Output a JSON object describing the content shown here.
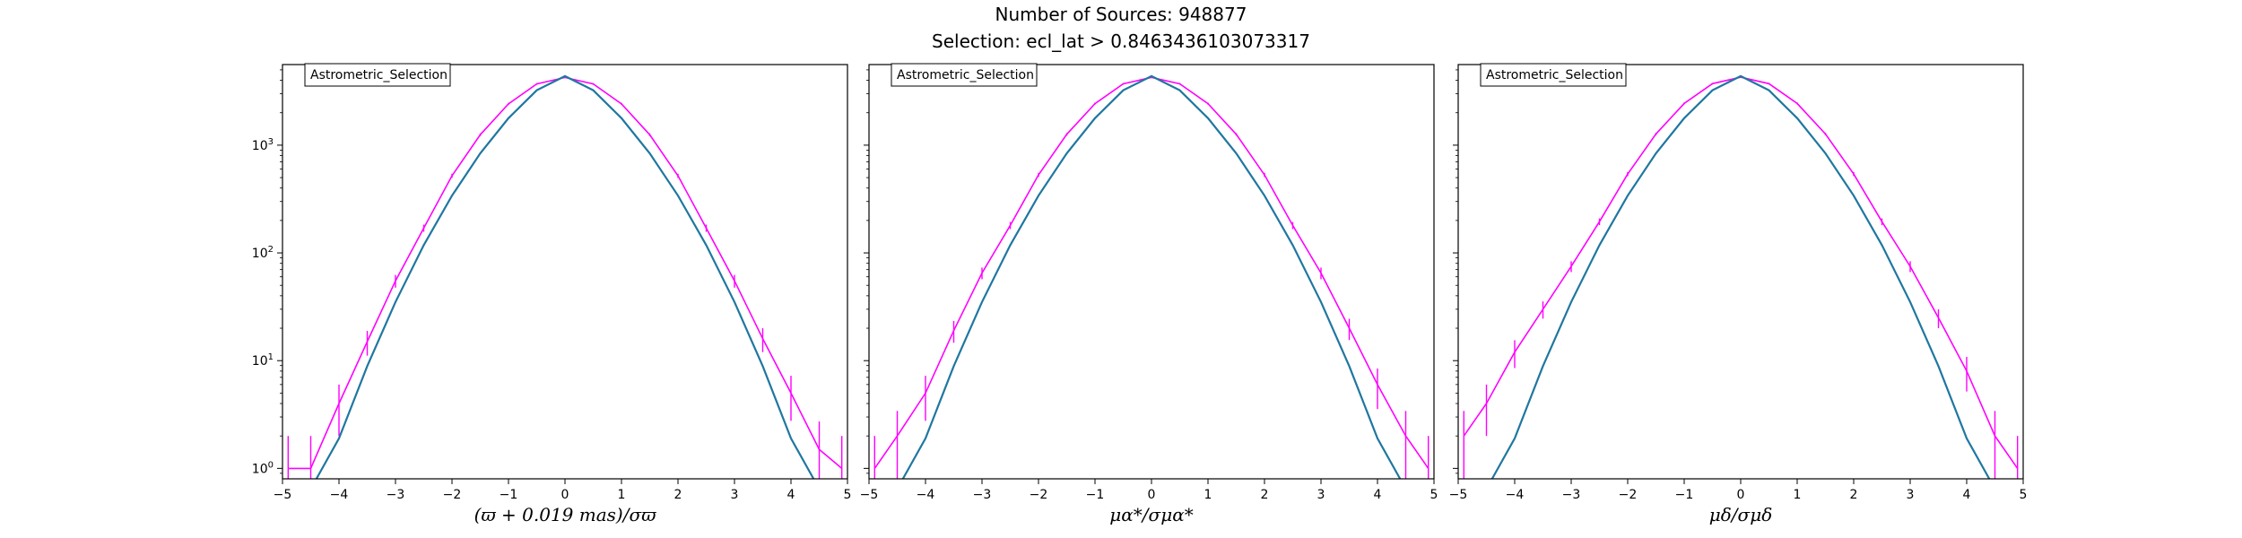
{
  "figure": {
    "suptitle_line1": "Number of Sources: 948877",
    "suptitle_line2": "Selection: ecl_lat > 0.8463436103073317",
    "colors": {
      "data": "#ff00ff",
      "model": "#1f77a0",
      "axes": "#000000"
    }
  },
  "chart_data": [
    {
      "type": "line",
      "legend": "Astrometric_Selection",
      "legend_location": "upper left",
      "xlabel": "(ϖ + 0.019 mas)/σϖ",
      "ylabel": "",
      "xlim": [
        -5,
        5
      ],
      "ylim": [
        0.8,
        5600
      ],
      "yscale": "log",
      "xticks": [
        "−5",
        "−4",
        "−3",
        "−2",
        "−1",
        "0",
        "1",
        "2",
        "3",
        "4",
        "5"
      ],
      "yticks": [
        "10^0",
        "10^1",
        "10^2",
        "10^3"
      ],
      "grid": false,
      "series": [
        {
          "style": "histogram",
          "color": "#ff00ff",
          "x": [
            -4.9,
            -4.5,
            -4.0,
            -3.5,
            -3.0,
            -2.5,
            -2.0,
            -1.5,
            -1.0,
            -0.5,
            0.0,
            0.5,
            1.0,
            1.5,
            2.0,
            2.5,
            3.0,
            3.5,
            4.0,
            4.5,
            4.9
          ],
          "y": [
            1,
            1,
            4,
            15,
            55,
            170,
            520,
            1250,
            2420,
            3700,
            4250,
            3700,
            2420,
            1250,
            520,
            170,
            55,
            16,
            5,
            1.5,
            1
          ]
        },
        {
          "style": "curve",
          "color": "#1f77a0",
          "form": "gaussian",
          "x": [
            -4.4,
            -4.0,
            -3.5,
            -3.0,
            -2.5,
            -2.0,
            -1.5,
            -1.0,
            -0.5,
            0.0,
            0.5,
            1.0,
            1.5,
            2.0,
            2.5,
            3.0,
            3.5,
            4.0,
            4.4
          ],
          "y": [
            0.8,
            1.9,
            8.9,
            35,
            118,
            340,
            840,
            1780,
            3230,
            4370,
            3230,
            1780,
            840,
            340,
            118,
            35,
            8.9,
            1.9,
            0.8
          ]
        }
      ]
    },
    {
      "type": "line",
      "legend": "Astrometric_Selection",
      "legend_location": "upper left",
      "xlabel": "μα*/σμα*",
      "ylabel": "",
      "xlim": [
        -5,
        5
      ],
      "ylim": [
        0.8,
        5600
      ],
      "yscale": "log",
      "xticks": [
        "−5",
        "−4",
        "−3",
        "−2",
        "−1",
        "0",
        "1",
        "2",
        "3",
        "4",
        "5"
      ],
      "yticks": [],
      "grid": false,
      "series": [
        {
          "style": "histogram",
          "color": "#ff00ff",
          "x": [
            -4.9,
            -4.5,
            -4.0,
            -3.5,
            -3.0,
            -2.5,
            -2.0,
            -1.5,
            -1.0,
            -0.5,
            0.0,
            0.5,
            1.0,
            1.5,
            2.0,
            2.5,
            3.0,
            3.5,
            4.0,
            4.5,
            4.9
          ],
          "y": [
            1,
            2,
            5,
            19,
            65,
            180,
            530,
            1260,
            2430,
            3710,
            4260,
            3710,
            2430,
            1260,
            530,
            180,
            65,
            20,
            6,
            2,
            1
          ]
        },
        {
          "style": "curve",
          "color": "#1f77a0",
          "form": "gaussian",
          "x": [
            -4.4,
            -4.0,
            -3.5,
            -3.0,
            -2.5,
            -2.0,
            -1.5,
            -1.0,
            -0.5,
            0.0,
            0.5,
            1.0,
            1.5,
            2.0,
            2.5,
            3.0,
            3.5,
            4.0,
            4.4
          ],
          "y": [
            0.8,
            1.9,
            8.9,
            35,
            118,
            340,
            840,
            1780,
            3230,
            4370,
            3230,
            1780,
            840,
            340,
            118,
            35,
            8.9,
            1.9,
            0.8
          ]
        }
      ]
    },
    {
      "type": "line",
      "legend": "Astrometric_Selection",
      "legend_location": "upper left",
      "xlabel": "μδ/σμδ",
      "ylabel": "",
      "xlim": [
        -5,
        5
      ],
      "ylim": [
        0.8,
        5600
      ],
      "yscale": "log",
      "xticks": [
        "−5",
        "−4",
        "−3",
        "−2",
        "−1",
        "0",
        "1",
        "2",
        "3",
        "4",
        "5"
      ],
      "yticks": [],
      "grid": false,
      "series": [
        {
          "style": "histogram",
          "color": "#ff00ff",
          "x": [
            -4.9,
            -4.5,
            -4.0,
            -3.5,
            -3.0,
            -2.5,
            -2.0,
            -1.5,
            -1.0,
            -0.5,
            0.0,
            0.5,
            1.0,
            1.5,
            2.0,
            2.5,
            3.0,
            3.5,
            4.0,
            4.5,
            4.9
          ],
          "y": [
            2,
            4,
            12,
            30,
            75,
            195,
            540,
            1270,
            2440,
            3720,
            4270,
            3720,
            2440,
            1270,
            540,
            195,
            75,
            25,
            8,
            2,
            1
          ]
        },
        {
          "style": "curve",
          "color": "#1f77a0",
          "form": "gaussian",
          "x": [
            -4.4,
            -4.0,
            -3.5,
            -3.0,
            -2.5,
            -2.0,
            -1.5,
            -1.0,
            -0.5,
            0.0,
            0.5,
            1.0,
            1.5,
            2.0,
            2.5,
            3.0,
            3.5,
            4.0,
            4.4
          ],
          "y": [
            0.8,
            1.9,
            8.9,
            35,
            118,
            340,
            840,
            1780,
            3230,
            4370,
            3230,
            1780,
            840,
            340,
            118,
            35,
            8.9,
            1.9,
            0.8
          ]
        }
      ]
    }
  ]
}
